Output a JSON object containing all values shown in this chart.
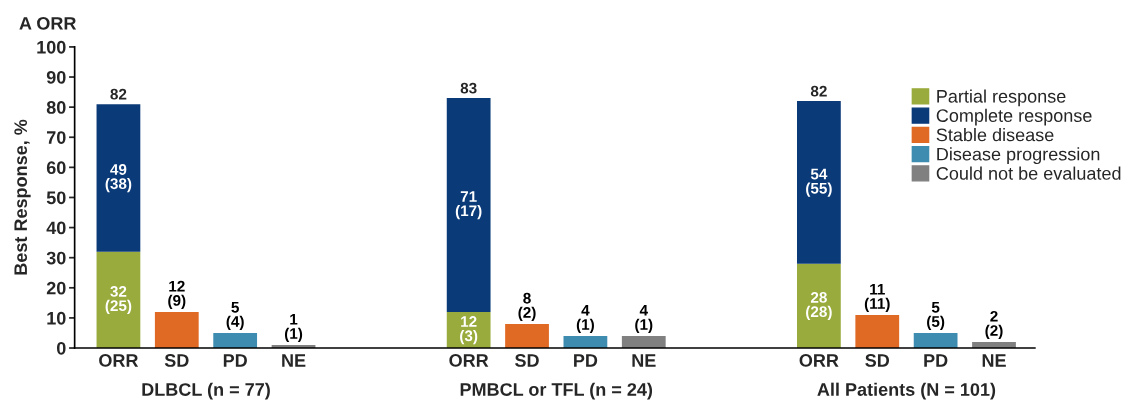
{
  "chart_data": {
    "type": "bar",
    "title": "A ORR",
    "ylabel": "Best Response, %",
    "categories": [
      "ORR",
      "SD",
      "PD",
      "NE",
      null,
      null,
      "ORR",
      "SD",
      "PD",
      "NE",
      null,
      null,
      "ORR",
      "SD",
      "PD",
      "NE"
    ],
    "stacked": true,
    "series": [
      {
        "name": "Partial response",
        "color": "#9aab3e",
        "values": [
          32,
          null,
          null,
          null,
          null,
          null,
          12,
          null,
          null,
          null,
          null,
          null,
          28,
          null,
          null,
          null
        ],
        "value_labels": [
          "32\n(25)",
          null,
          null,
          null,
          null,
          null,
          "12\n(3)",
          null,
          null,
          null,
          null,
          null,
          "28\n(28)",
          null,
          null,
          null
        ]
      },
      {
        "name": "Complete response",
        "color": "#0b3a78",
        "values": [
          49,
          null,
          null,
          null,
          null,
          null,
          71,
          null,
          null,
          null,
          null,
          null,
          54,
          null,
          null,
          null
        ],
        "value_labels": [
          "49\n(38)",
          null,
          null,
          null,
          null,
          null,
          "71\n(17)",
          null,
          null,
          null,
          null,
          null,
          "54\n(55)",
          null,
          null,
          null
        ]
      },
      {
        "name": "Stable disease",
        "color": "#e06a24",
        "values": [
          null,
          12,
          null,
          null,
          null,
          null,
          null,
          8,
          null,
          null,
          null,
          null,
          null,
          11,
          null,
          null
        ],
        "value_labels": [
          null,
          "12\n(9)",
          null,
          null,
          null,
          null,
          null,
          "8\n(2)",
          null,
          null,
          null,
          null,
          null,
          "11\n(11)",
          null,
          null
        ]
      },
      {
        "name": "Disease progression",
        "color": "#3e8db0",
        "values": [
          null,
          null,
          5,
          null,
          null,
          null,
          null,
          null,
          4,
          null,
          null,
          null,
          null,
          null,
          5,
          null
        ],
        "value_labels": [
          null,
          null,
          "5\n(4)",
          null,
          null,
          null,
          null,
          null,
          "4\n(1)",
          null,
          null,
          null,
          null,
          null,
          "5\n(5)",
          null
        ]
      },
      {
        "name": "Could not be evaluated",
        "color": "#808080",
        "values": [
          null,
          null,
          null,
          1,
          null,
          null,
          null,
          null,
          null,
          4,
          null,
          null,
          null,
          null,
          null,
          2
        ],
        "value_labels": [
          null,
          null,
          null,
          "1\n(1)",
          null,
          null,
          null,
          null,
          null,
          "4\n(1)",
          null,
          null,
          null,
          null,
          null,
          "2\n(2)"
        ]
      }
    ],
    "totals": [
      "82",
      null,
      null,
      null,
      null,
      null,
      "83",
      null,
      null,
      null,
      null,
      null,
      "82",
      null,
      null,
      null
    ],
    "annotations": [
      "DLBCL (n = 77)",
      "PMBCL or TFL (n = 24)",
      "All Patients (N = 101)"
    ],
    "ylim": [
      0,
      100
    ],
    "yticks": [
      0,
      10,
      20,
      30,
      40,
      50,
      60,
      70,
      80,
      90,
      100
    ],
    "grid": false,
    "legend": "top right"
  }
}
